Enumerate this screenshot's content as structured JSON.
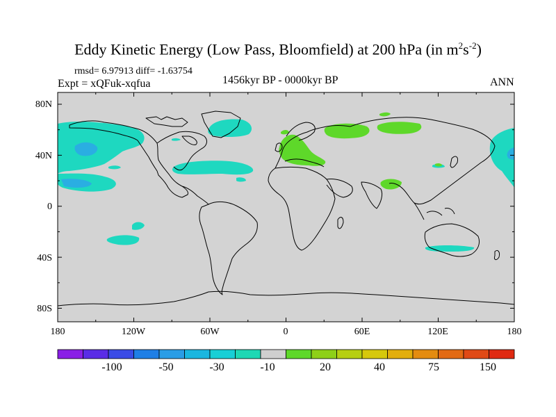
{
  "title": {
    "main": "Eddy Kinetic Energy (Low Pass, Bloomfield) at 200 hPa (in m",
    "sup1": "2",
    "mid": "s",
    "sup2": "-2",
    "end": ")"
  },
  "subtitle": {
    "rmsd": "rmsd= 6.97913 diff= -1.63754",
    "expt": "Expt = xQFuk-xqfua",
    "period": "1456kyr BP - 0000kyr BP",
    "season": "ANN"
  },
  "axes": {
    "lat_labels": [
      "80N",
      "40N",
      "0",
      "40S",
      "80S"
    ],
    "lon_labels": [
      "180",
      "120W",
      "60W",
      "0",
      "60E",
      "120E",
      "180"
    ]
  },
  "colorbar": {
    "labels": [
      "-100",
      "-50",
      "-30",
      "-10",
      "20",
      "40",
      "75",
      "150"
    ],
    "colors": [
      "#8a1fe6",
      "#5a2ce6",
      "#3a4be6",
      "#1f7fe6",
      "#2a9de6",
      "#1ab6e0",
      "#18cfd6",
      "#1ed8b4",
      "#cfcfcf",
      "#5ed82a",
      "#8ed018",
      "#b6cf12",
      "#d6c80c",
      "#e2ae0c",
      "#e48c10",
      "#e26a14",
      "#e04a16",
      "#e02a12"
    ]
  },
  "colors": {
    "land_ocean": "#d3d3d3",
    "cyan": "#1ed0c8",
    "cyan_light": "#1ed8b8",
    "blue": "#2aaee2",
    "green": "#5ed82a"
  }
}
